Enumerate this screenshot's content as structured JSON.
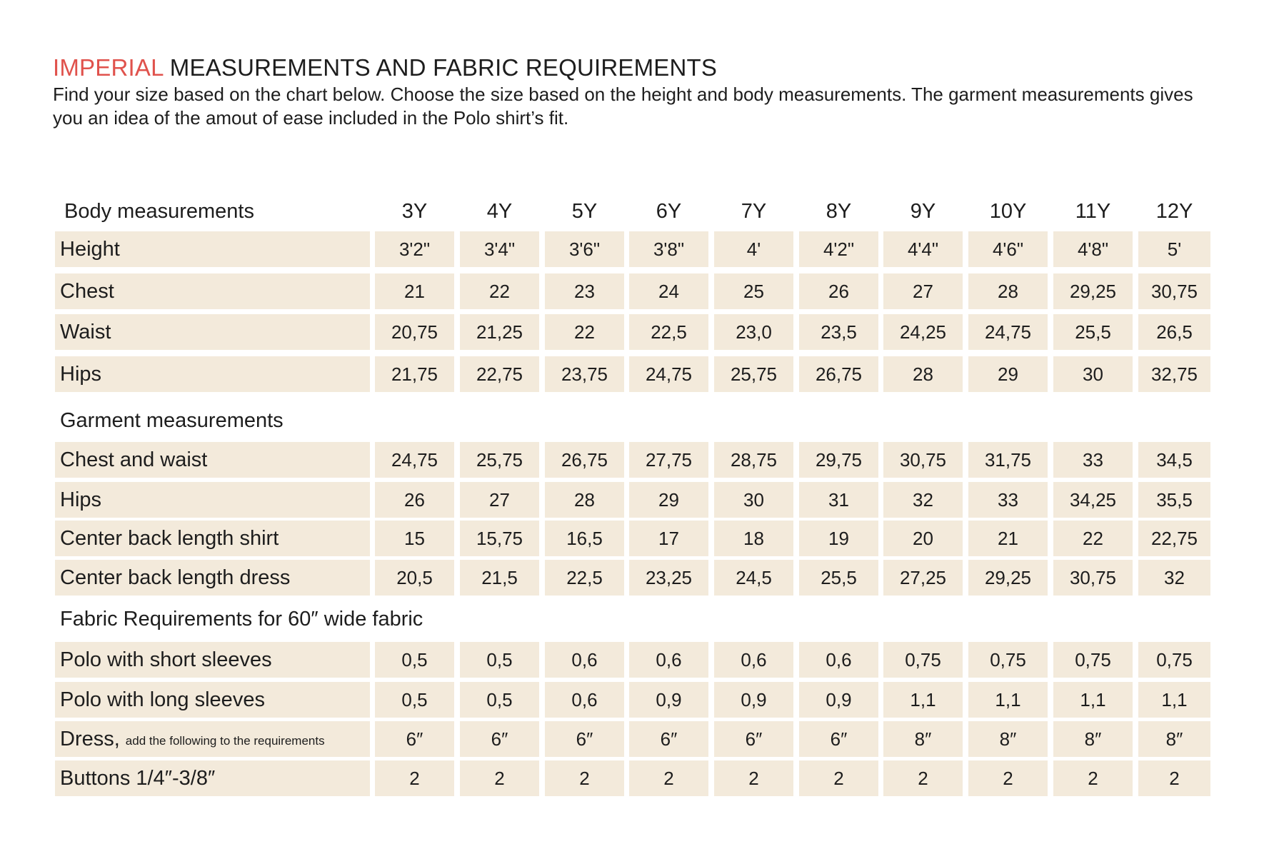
{
  "title": {
    "accent": "IMPERIAL",
    "rest": "MEASUREMENTS AND FABRIC REQUIREMENTS"
  },
  "intro": "Find your size based on the chart below. Choose the size based on the height and body measurements. The garment measurements gives you an idea of the amout of ease included in the Polo shirt’s fit.",
  "sizes": [
    "3Y",
    "4Y",
    "5Y",
    "6Y",
    "7Y",
    "8Y",
    "9Y",
    "10Y",
    "11Y",
    "12Y"
  ],
  "sections": [
    {
      "label": "Body measurements",
      "rows": [
        {
          "label": "Height",
          "values": [
            "3'2\"",
            "3'4\"",
            "3'6\"",
            "3'8\"",
            "4'",
            "4'2\"",
            "4'4\"",
            "4'6\"",
            "4'8\"",
            "5'"
          ]
        },
        {
          "label": "Chest",
          "values": [
            "21",
            "22",
            "23",
            "24",
            "25",
            "26",
            "27",
            "28",
            "29,25",
            "30,75"
          ]
        },
        {
          "label": "Waist",
          "values": [
            "20,75",
            "21,25",
            "22",
            "22,5",
            "23,0",
            "23,5",
            "24,25",
            "24,75",
            "25,5",
            "26,5"
          ]
        },
        {
          "label": "Hips",
          "values": [
            "21,75",
            "22,75",
            "23,75",
            "24,75",
            "25,75",
            "26,75",
            "28",
            "29",
            "30",
            "32,75"
          ]
        }
      ]
    },
    {
      "label": "Garment measurements",
      "rows": [
        {
          "label": "Chest and waist",
          "values": [
            "24,75",
            "25,75",
            "26,75",
            "27,75",
            "28,75",
            "29,75",
            "30,75",
            "31,75",
            "33",
            "34,5"
          ]
        },
        {
          "label": "Hips",
          "values": [
            "26",
            "27",
            "28",
            "29",
            "30",
            "31",
            "32",
            "33",
            "34,25",
            "35,5"
          ]
        },
        {
          "label": "Center back length shirt",
          "values": [
            "15",
            "15,75",
            "16,5",
            "17",
            "18",
            "19",
            "20",
            "21",
            "22",
            "22,75"
          ]
        },
        {
          "label": "Center back length dress",
          "values": [
            "20,5",
            "21,5",
            "22,5",
            "23,25",
            "24,5",
            "25,5",
            "27,25",
            "29,25",
            "30,75",
            "32"
          ]
        }
      ]
    },
    {
      "label": "Fabric Requirements for  60″ wide fabric",
      "rows": [
        {
          "label": "Polo with short sleeves",
          "values": [
            "0,5",
            "0,5",
            "0,6",
            "0,6",
            "0,6",
            "0,6",
            "0,75",
            "0,75",
            "0,75",
            "0,75"
          ]
        },
        {
          "label": "Polo with long sleeves",
          "values": [
            "0,5",
            "0,5",
            "0,6",
            "0,9",
            "0,9",
            "0,9",
            "1,1",
            "1,1",
            "1,1",
            "1,1"
          ]
        },
        {
          "label": "Dress,",
          "note": "add the following to the requirements",
          "values": [
            "6″",
            "6″",
            "6″",
            "6″",
            "6″",
            "6″",
            "8″",
            "8″",
            "8″",
            "8″"
          ]
        },
        {
          "label": "Buttons 1/4″-3/8″",
          "values": [
            "2",
            "2",
            "2",
            "2",
            "2",
            "2",
            "2",
            "2",
            "2",
            "2"
          ]
        }
      ]
    }
  ]
}
